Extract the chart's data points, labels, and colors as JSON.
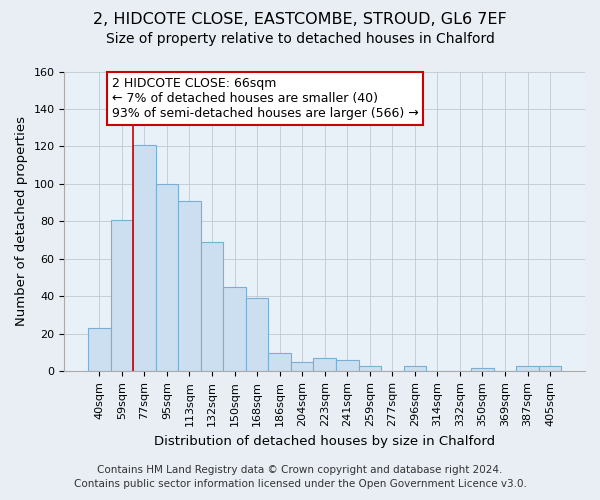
{
  "title_line1": "2, HIDCOTE CLOSE, EASTCOMBE, STROUD, GL6 7EF",
  "title_line2": "Size of property relative to detached houses in Chalford",
  "xlabel": "Distribution of detached houses by size in Chalford",
  "ylabel": "Number of detached properties",
  "bar_labels": [
    "40sqm",
    "59sqm",
    "77sqm",
    "95sqm",
    "113sqm",
    "132sqm",
    "150sqm",
    "168sqm",
    "186sqm",
    "204sqm",
    "223sqm",
    "241sqm",
    "259sqm",
    "277sqm",
    "296sqm",
    "314sqm",
    "332sqm",
    "350sqm",
    "369sqm",
    "387sqm",
    "405sqm"
  ],
  "bar_values": [
    23,
    81,
    121,
    100,
    91,
    69,
    45,
    39,
    10,
    5,
    7,
    6,
    3,
    0,
    3,
    0,
    0,
    2,
    0,
    3,
    3
  ],
  "bar_color": "#ccdff0",
  "bar_edge_color": "#7aafd4",
  "annotation_box_text": "2 HIDCOTE CLOSE: 66sqm\n← 7% of detached houses are smaller (40)\n93% of semi-detached houses are larger (566) →",
  "annotation_box_color": "#ffffff",
  "annotation_box_edge_color": "#cc0000",
  "vline_x": 1.5,
  "vline_color": "#cc0000",
  "ylim": [
    0,
    160
  ],
  "yticks": [
    0,
    20,
    40,
    60,
    80,
    100,
    120,
    140,
    160
  ],
  "footer_line1": "Contains HM Land Registry data © Crown copyright and database right 2024.",
  "footer_line2": "Contains public sector information licensed under the Open Government Licence v3.0.",
  "bg_color": "#e8eef4",
  "plot_bg_color": "#e8f0f8",
  "title_fontsize": 11.5,
  "subtitle_fontsize": 10,
  "axis_label_fontsize": 9.5,
  "tick_fontsize": 8,
  "footer_fontsize": 7.5,
  "annot_fontsize": 9
}
